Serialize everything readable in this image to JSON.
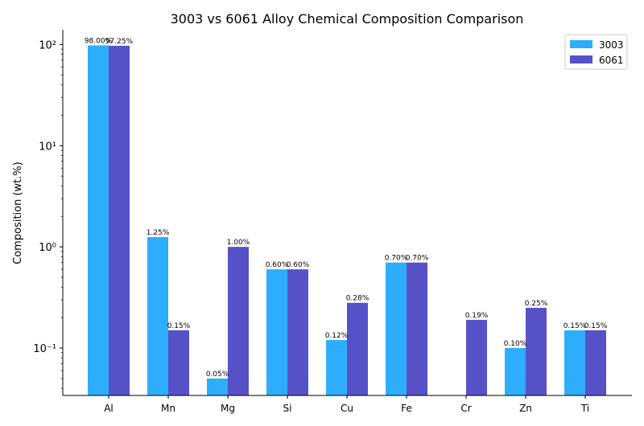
{
  "chart_data": {
    "type": "bar",
    "title": "3003 vs 6061 Alloy Chemical Composition Comparison",
    "xlabel": "",
    "ylabel": "Composition (wt.%)",
    "yscale": "log",
    "ylim": [
      0.034,
      140
    ],
    "yticks": [
      {
        "value": 0.1,
        "label": "10⁻¹"
      },
      {
        "value": 1,
        "label": "10⁰"
      },
      {
        "value": 10,
        "label": "10¹"
      },
      {
        "value": 100,
        "label": "10²"
      }
    ],
    "categories": [
      "Al",
      "Mn",
      "Mg",
      "Si",
      "Cu",
      "Fe",
      "Cr",
      "Zn",
      "Ti"
    ],
    "series": [
      {
        "name": "3003",
        "color": "#2eadfc",
        "values": [
          98.0,
          1.25,
          0.05,
          0.6,
          0.12,
          0.7,
          null,
          0.1,
          0.15
        ],
        "labels": [
          "98.00%",
          "1.25%",
          "0.05%",
          "0.60%",
          "0.12%",
          "0.70%",
          "",
          "0.10%",
          "0.15%"
        ]
      },
      {
        "name": "6061",
        "color": "#5751c8",
        "values": [
          97.25,
          0.15,
          1.0,
          0.6,
          0.28,
          0.7,
          0.19,
          0.25,
          0.15
        ],
        "labels": [
          "97.25%",
          "0.15%",
          "1.00%",
          "0.60%",
          "0.28%",
          "0.70%",
          "0.19%",
          "0.25%",
          "0.15%"
        ]
      }
    ],
    "legend": "top-right",
    "grid": false
  }
}
